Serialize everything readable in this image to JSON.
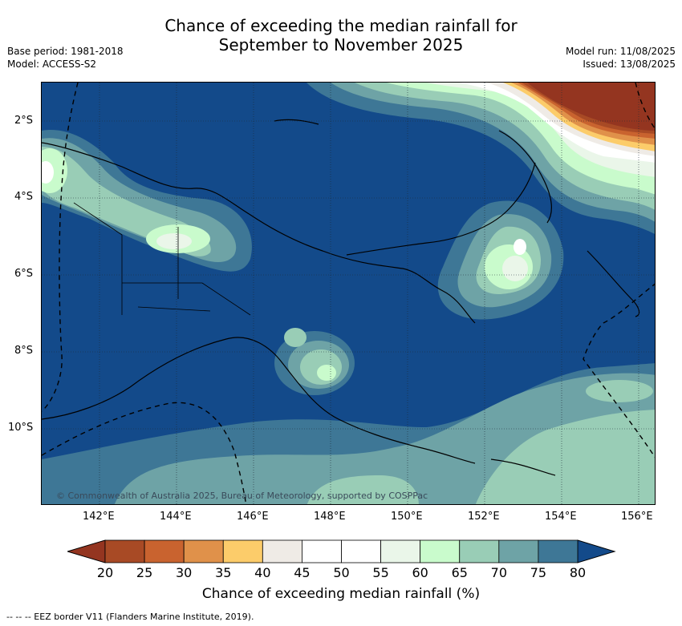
{
  "title": {
    "line1": "Chance of exceeding the median rainfall for",
    "line2": "September to November 2025"
  },
  "meta": {
    "base_period": "Base period: 1981-2018",
    "model": "Model: ACCESS-S2",
    "model_run": "Model run: 11/08/2025",
    "issued": "Issued: 13/08/2025"
  },
  "map": {
    "copyright": "© Commonwealth of Australia 2025, Bureau of Meteorology, supported by COSPPac",
    "lat_labels": [
      "2°S",
      "4°S",
      "6°S",
      "8°S",
      "10°S"
    ],
    "lon_labels": [
      "142°E",
      "144°E",
      "146°E",
      "148°E",
      "150°E",
      "152°E",
      "154°E",
      "156°E"
    ],
    "background_color": "#134a8a"
  },
  "colorbar": {
    "ticks": [
      "20",
      "25",
      "30",
      "35",
      "40",
      "45",
      "50",
      "55",
      "60",
      "65",
      "70",
      "75",
      "80"
    ],
    "colors": [
      "#a84a25",
      "#c9632f",
      "#e0914a",
      "#fccc6a",
      "#efebe6",
      "#ffffff",
      "#ffffff",
      "#eaf6e9",
      "#c9fbcc",
      "#99cdb6",
      "#6ea3a6",
      "#3e7796"
    ],
    "under_color": "#943520",
    "over_color": "#134a8a",
    "label": "Chance of exceeding median rainfall (%)"
  },
  "footer": "--  --  -- EEZ border V11 (Flanders Marine Institute, 2019)."
}
